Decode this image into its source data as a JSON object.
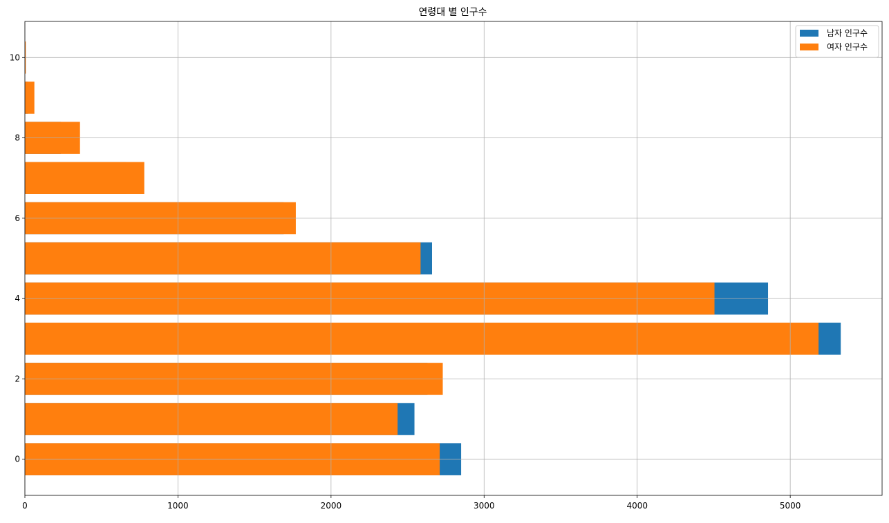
{
  "chart_data": {
    "type": "bar",
    "orientation": "horizontal",
    "stacked": false,
    "title": "연령대 별 인구수",
    "xlabel": "",
    "ylabel": "",
    "xlim": [
      0,
      5600
    ],
    "ylim": [
      -0.9,
      10.9
    ],
    "xticks": [
      0,
      1000,
      2000,
      3000,
      4000,
      5000
    ],
    "yticks": [
      0,
      2,
      4,
      6,
      8,
      10
    ],
    "grid": true,
    "legend_position": "top-right",
    "categories": [
      0,
      1,
      2,
      3,
      4,
      5,
      6,
      7,
      8,
      9,
      10
    ],
    "series": [
      {
        "name": "남자 인구수",
        "color": "#1f77b4",
        "values": [
          2850,
          2545,
          2630,
          5330,
          4855,
          2660,
          1690,
          660,
          235,
          20,
          2
        ]
      },
      {
        "name": "여자 인구수",
        "color": "#ff7f0e",
        "values": [
          2710,
          2435,
          2730,
          5185,
          4505,
          2585,
          1770,
          780,
          360,
          62,
          6
        ]
      }
    ]
  }
}
